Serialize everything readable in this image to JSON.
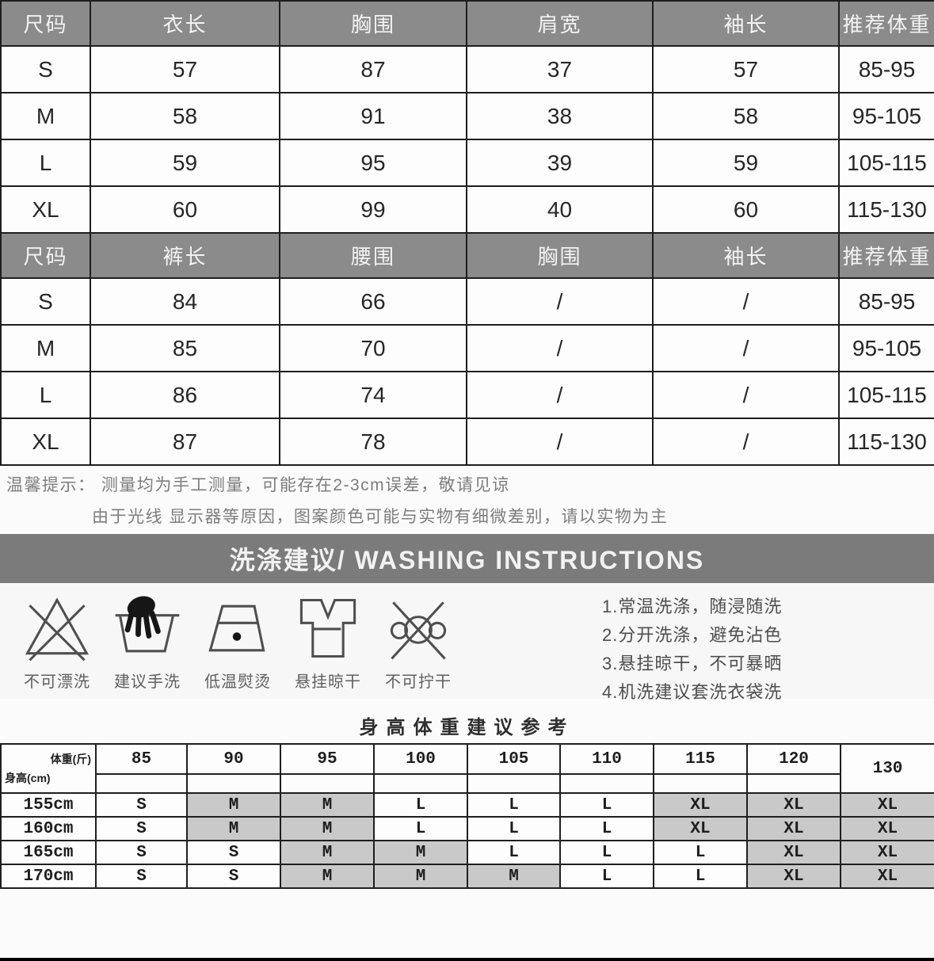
{
  "colors": {
    "header_gray": "#8b8b8b",
    "band_gray": "#7b7b7b",
    "highlight_gray": "#c9c9c9",
    "border_dark": "#1e1e1e",
    "notice_text": "#7d7d7d",
    "bottom_strip": "#000000"
  },
  "tops_table": {
    "headers": [
      "尺码",
      "衣长",
      "胸围",
      "肩宽",
      "袖长",
      "推荐体重"
    ],
    "rows": [
      [
        "S",
        "57",
        "87",
        "37",
        "57",
        "85-95"
      ],
      [
        "M",
        "58",
        "91",
        "38",
        "58",
        "95-105"
      ],
      [
        "L",
        "59",
        "95",
        "39",
        "59",
        "105-115"
      ],
      [
        "XL",
        "60",
        "99",
        "40",
        "60",
        "115-130"
      ]
    ]
  },
  "bottoms_table": {
    "headers": [
      "尺码",
      "裤长",
      "腰围",
      "胸围",
      "袖长",
      "推荐体重"
    ],
    "rows": [
      [
        "S",
        "84",
        "66",
        "/",
        "/",
        "85-95"
      ],
      [
        "M",
        "85",
        "70",
        "/",
        "/",
        "95-105"
      ],
      [
        "L",
        "86",
        "74",
        "/",
        "/",
        "105-115"
      ],
      [
        "XL",
        "87",
        "78",
        "/",
        "/",
        "115-130"
      ]
    ]
  },
  "notice": {
    "line1": "温馨提示： 测量均为手工测量，可能存在2-3cm误差，敬请见谅",
    "line2": "由于光线 显示器等原因，图案颜色可能与实物有细微差别，请以实物为主"
  },
  "washing": {
    "title": "洗涤建议/ WASHING INSTRUCTIONS",
    "icons": [
      {
        "name": "no-bleach-icon",
        "label": "不可漂洗"
      },
      {
        "name": "hand-wash-icon",
        "label": "建议手洗"
      },
      {
        "name": "low-iron-icon",
        "label": "低温熨烫"
      },
      {
        "name": "hang-dry-icon",
        "label": "悬挂晾干"
      },
      {
        "name": "no-wring-icon",
        "label": "不可拧干"
      }
    ],
    "tips": [
      "1.常温洗涤，随浸随洗",
      "2.分开洗涤，避免沾色",
      "3.悬挂晾干，不可暴晒",
      "4.机洗建议套洗衣袋洗"
    ]
  },
  "hw_table": {
    "title": "身高体重建议参考",
    "corner_top": "体重(斤)",
    "corner_bottom": "身高(cm)",
    "weights": [
      "85",
      "90",
      "95",
      "100",
      "105",
      "110",
      "115",
      "120",
      "130"
    ],
    "rows": [
      {
        "height": "155cm",
        "sizes": [
          "S",
          "M",
          "M",
          "L",
          "L",
          "L",
          "XL",
          "XL",
          "XL"
        ]
      },
      {
        "height": "160cm",
        "sizes": [
          "S",
          "M",
          "M",
          "L",
          "L",
          "L",
          "XL",
          "XL",
          "XL"
        ]
      },
      {
        "height": "165cm",
        "sizes": [
          "S",
          "S",
          "M",
          "M",
          "L",
          "L",
          "L",
          "XL",
          "XL"
        ]
      },
      {
        "height": "170cm",
        "sizes": [
          "S",
          "S",
          "M",
          "M",
          "M",
          "L",
          "L",
          "XL",
          "XL"
        ]
      }
    ],
    "highlight_sizes": [
      "M",
      "XL"
    ]
  }
}
